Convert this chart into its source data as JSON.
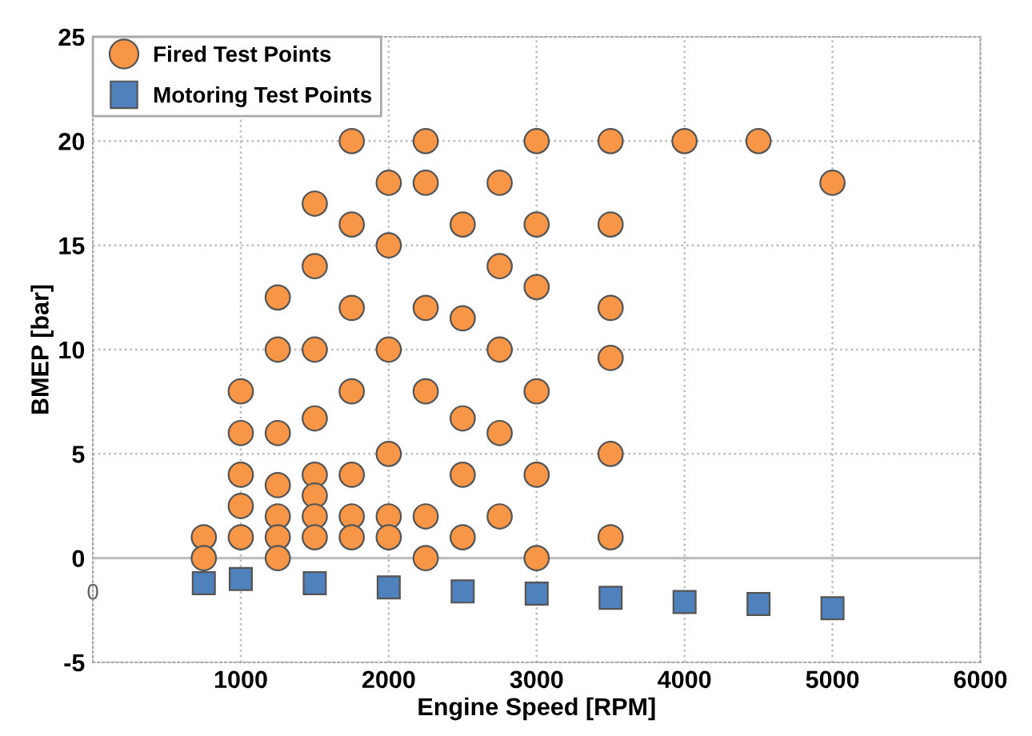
{
  "chart_data": {
    "type": "scatter",
    "xlabel": "Engine Speed [RPM]",
    "ylabel": "BMEP [bar]",
    "xlim": [
      0,
      6000
    ],
    "xticks": [
      1000,
      2000,
      3000,
      4000,
      5000,
      6000
    ],
    "ylim": [
      -5,
      25
    ],
    "yticks": [
      -5,
      0,
      5,
      10,
      15,
      20,
      25
    ],
    "grid": true,
    "legend": "top left",
    "ref_lines": [
      {
        "axis": "y",
        "value": 0,
        "color": "#bfbfbf",
        "line_style": "solid"
      }
    ],
    "annotations": [
      "0"
    ],
    "series": [
      {
        "name": "Fired Test Points",
        "color": "#f79646",
        "marker": "circle",
        "x": [
          750,
          750,
          1000,
          1000,
          1000,
          1000,
          1000,
          1250,
          1250,
          1250,
          1250,
          1250,
          1250,
          1250,
          1500,
          1500,
          1500,
          1500,
          1500,
          1500,
          1500,
          1500,
          1750,
          1750,
          1750,
          1750,
          1750,
          1750,
          1750,
          2000,
          2000,
          2000,
          2000,
          2000,
          2000,
          2250,
          2250,
          2250,
          2250,
          2250,
          2250,
          2500,
          2500,
          2500,
          2500,
          2500,
          2750,
          2750,
          2750,
          2750,
          2750,
          3000,
          3000,
          3000,
          3000,
          3000,
          3000,
          3500,
          3500,
          3500,
          3500,
          3500,
          3500,
          4000,
          4500,
          5000
        ],
        "values": [
          1,
          0,
          8,
          6,
          4,
          2.5,
          1,
          12.5,
          10,
          6,
          3.5,
          2,
          1,
          0,
          17,
          14,
          10,
          6.7,
          4,
          3,
          2,
          1,
          20,
          16,
          12,
          8,
          4,
          2,
          1,
          18,
          15,
          10,
          5,
          2,
          1,
          20,
          18,
          12,
          8,
          2,
          0,
          16,
          11.5,
          6.7,
          4,
          1,
          18,
          14,
          10,
          6,
          2,
          20,
          16,
          13,
          8,
          4,
          0,
          20,
          16,
          12,
          9.6,
          5,
          1,
          20,
          20,
          18
        ]
      },
      {
        "name": "Motoring Test Points",
        "color": "#4f81bd",
        "marker": "square",
        "x": [
          750,
          1000,
          1500,
          2000,
          2500,
          3000,
          3500,
          4000,
          4500,
          5000
        ],
        "values": [
          -1.2,
          -1.0,
          -1.2,
          -1.4,
          -1.6,
          -1.7,
          -1.9,
          -2.1,
          -2.2,
          -2.4
        ]
      }
    ]
  }
}
